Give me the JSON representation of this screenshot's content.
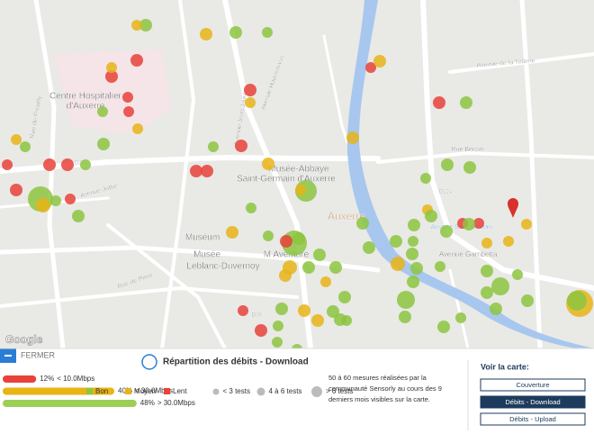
{
  "map": {
    "labels": [
      "Centre Hospitalier",
      "d'Auxerre",
      "Musée-Abbaye",
      "Saint-Germain d'Auxerre",
      "Muséum",
      "Musée",
      "Leblanc-Duvernoy",
      "Auxerre",
      "M Aventure",
      "Auxerre Saint Gervais",
      "Rue Bercier",
      "Avenue Gambetta",
      "Avenue de la Tuilerie",
      "Avenue Haussmann",
      "Avenue Jean Jaurès",
      "Rue de Preuilly",
      "Avenue Joffre",
      "Rue de Paris",
      "D234",
      "D124",
      "D89"
    ],
    "attribution": "Google"
  },
  "panel": {
    "close": "FERMER",
    "title": "Répartition des débits - Download",
    "bars": [
      {
        "value": 12,
        "label": "12%",
        "threshold": "< 10.0Mbps",
        "color": "#e8423a"
      },
      {
        "value": 40,
        "label": "40%",
        "threshold": "< 30.0Mbps",
        "color": "#e8b416"
      },
      {
        "value": 48,
        "label": "48%",
        "threshold": "> 30.0Mbps",
        "color": "#9ccf55"
      }
    ],
    "legend": {
      "quality": [
        {
          "label": "Bon",
          "color": "#8cc63f"
        },
        {
          "label": "Moyen",
          "color": "#e8b416"
        },
        {
          "label": "Lent",
          "color": "#e8423a"
        }
      ],
      "sizes": [
        "< 3 tests",
        "4 à 6 tests",
        "> 6 tests"
      ]
    },
    "description": [
      "50 à 60 mesures réalisées par la",
      "communauté Sensorly au cours des 9",
      "derniers mois visibles sur la carte."
    ],
    "view": {
      "title": "Voir la carte:",
      "buttons": [
        "Couverture",
        "Débits - Download",
        "Débits - Upload"
      ],
      "active": 1
    }
  }
}
